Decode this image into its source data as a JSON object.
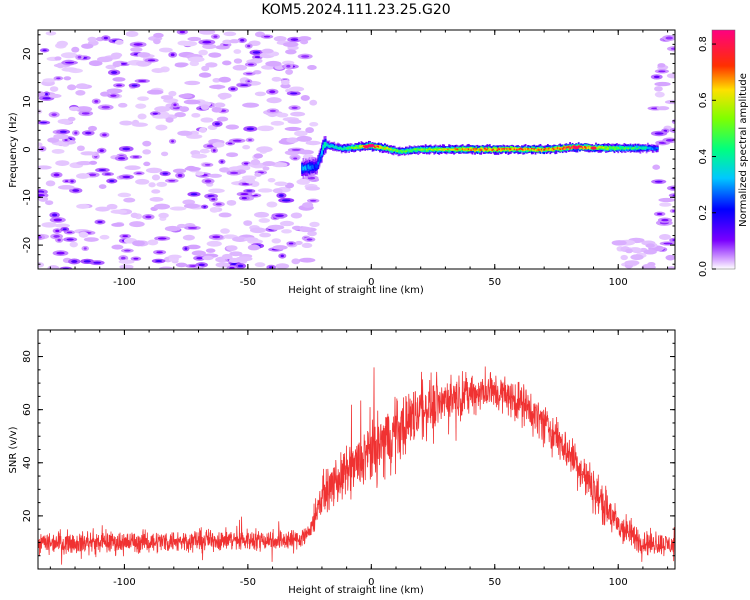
{
  "title": "KOM5.2024.111.23.25.G20",
  "chart_data": [
    {
      "type": "heatmap",
      "xlabel": "Height of straight line (km)",
      "ylabel": "Frequency (Hz)",
      "xlim": [
        -135,
        123
      ],
      "ylim": [
        -25,
        25
      ],
      "xticks": [
        -100,
        -50,
        0,
        50,
        100
      ],
      "yticks": [
        -20,
        -10,
        0,
        10,
        20
      ],
      "colorbar": {
        "label": "Normalized spectral amplitude",
        "range": [
          0,
          0.85
        ],
        "ticks": [
          0.0,
          0.2,
          0.4,
          0.6,
          0.8
        ]
      },
      "signal_track": [
        {
          "x": -28,
          "y": -4,
          "amp": 0.32
        },
        {
          "x": -22,
          "y": -3.5,
          "amp": 0.22
        },
        {
          "x": -19,
          "y": 1,
          "amp": 0.38
        },
        {
          "x": -12,
          "y": 0.2,
          "amp": 0.4
        },
        {
          "x": -5,
          "y": 0.5,
          "amp": 0.55
        },
        {
          "x": 0,
          "y": 0.8,
          "amp": 0.78
        },
        {
          "x": 5,
          "y": 0.3,
          "amp": 0.6
        },
        {
          "x": 12,
          "y": -0.4,
          "amp": 0.45
        },
        {
          "x": 20,
          "y": 0,
          "amp": 0.5
        },
        {
          "x": 30,
          "y": 0,
          "amp": 0.6
        },
        {
          "x": 45,
          "y": 0,
          "amp": 0.68
        },
        {
          "x": 55,
          "y": 0,
          "amp": 0.7
        },
        {
          "x": 70,
          "y": 0,
          "amp": 0.66
        },
        {
          "x": 83,
          "y": 0.5,
          "amp": 0.75
        },
        {
          "x": 95,
          "y": 0.3,
          "amp": 0.55
        },
        {
          "x": 110,
          "y": 0.3,
          "amp": 0.4
        },
        {
          "x": 116,
          "y": 0.2,
          "amp": 0.25
        }
      ]
    },
    {
      "type": "line",
      "xlabel": "Height of straight line (km)",
      "ylabel": "SNR (v/v)",
      "xlim": [
        -135,
        123
      ],
      "ylim": [
        0,
        90
      ],
      "xticks": [
        -100,
        -50,
        0,
        50,
        100
      ],
      "yticks": [
        20,
        40,
        60,
        80
      ],
      "series_color": "#f03232",
      "envelope": {
        "x": [
          -135,
          -100,
          -60,
          -30,
          -25,
          -20,
          -10,
          0,
          10,
          20,
          30,
          40,
          50,
          60,
          70,
          80,
          90,
          100,
          110,
          123
        ],
        "y": [
          10,
          10,
          11,
          11,
          14,
          28,
          36,
          44,
          52,
          60,
          64,
          66,
          67,
          63,
          55,
          44,
          30,
          16,
          10,
          9
        ]
      },
      "noise_amplitude": [
        6,
        6,
        6,
        6,
        6,
        10,
        14,
        18,
        18,
        16,
        12,
        11,
        11,
        11,
        11,
        11,
        12,
        10,
        7,
        6
      ]
    }
  ]
}
